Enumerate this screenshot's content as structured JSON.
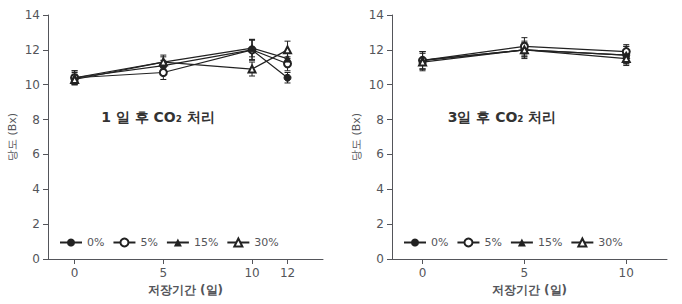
{
  "chart_data": [
    {
      "type": "line",
      "title": "1 일 후 CO₂ 처리",
      "xlabel": "저장기간 (일)",
      "ylabel": "당도 (Bx)",
      "x": [
        0,
        5,
        10,
        12
      ],
      "xlim": [
        -1.5,
        14
      ],
      "xticks": [
        0,
        5,
        10,
        12
      ],
      "ylim": [
        0,
        14
      ],
      "yticks": [
        0,
        2,
        4,
        6,
        8,
        10,
        12,
        14
      ],
      "grid": false,
      "legend": "lower left",
      "series": [
        {
          "name": "0%",
          "color": "#222222",
          "marker": "circle",
          "values": [
            10.4,
            11.1,
            12.0,
            10.4
          ],
          "yerr": [
            0.4,
            0.3,
            0.55,
            0.3
          ]
        },
        {
          "name": "5%",
          "color": "#222222",
          "marker": "circle_open",
          "values": [
            10.4,
            10.7,
            12.0,
            11.2
          ],
          "yerr": [
            0.3,
            0.4,
            0.6,
            0.4
          ]
        },
        {
          "name": "15%",
          "color": "#222222",
          "marker": "triangle",
          "values": [
            10.4,
            11.3,
            12.1,
            11.5
          ],
          "yerr": [
            0.4,
            0.3,
            0.5,
            0.3
          ]
        },
        {
          "name": "30%",
          "color": "#222222",
          "marker": "triangle_open",
          "values": [
            10.3,
            11.3,
            10.9,
            12.0
          ],
          "yerr": [
            0.3,
            0.4,
            0.4,
            0.5
          ]
        }
      ]
    },
    {
      "type": "line",
      "title": "3일 후 CO₂ 처리",
      "xlabel": "저장기간 (일)",
      "ylabel": "당도 (Bx)",
      "x": [
        0,
        5,
        10
      ],
      "xlim": [
        -1.5,
        12
      ],
      "xticks": [
        0,
        5,
        10
      ],
      "ylim": [
        0,
        14
      ],
      "yticks": [
        0,
        2,
        4,
        6,
        8,
        10,
        12,
        14
      ],
      "grid": false,
      "legend": "lower left",
      "series": [
        {
          "name": "0%",
          "color": "#222222",
          "marker": "circle",
          "values": [
            11.4,
            12.0,
            11.7
          ],
          "yerr": [
            0.5,
            0.4,
            0.5
          ]
        },
        {
          "name": "5%",
          "color": "#222222",
          "marker": "circle_open",
          "values": [
            11.4,
            12.2,
            11.9
          ],
          "yerr": [
            0.5,
            0.5,
            0.4
          ]
        },
        {
          "name": "15%",
          "color": "#222222",
          "marker": "triangle",
          "values": [
            11.4,
            12.0,
            11.7
          ],
          "yerr": [
            0.5,
            0.5,
            0.5
          ]
        },
        {
          "name": "30%",
          "color": "#222222",
          "marker": "triangle_open",
          "values": [
            11.3,
            12.0,
            11.5
          ],
          "yerr": [
            0.5,
            0.4,
            0.4
          ]
        }
      ]
    }
  ]
}
